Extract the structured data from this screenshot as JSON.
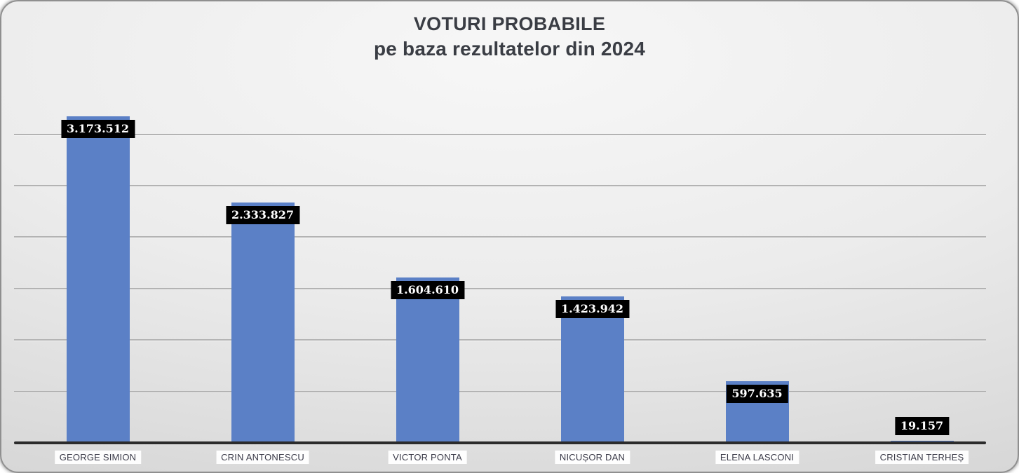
{
  "chart": {
    "title": "VOTURI PROBABILE",
    "subtitle": "pe baza rezultatelor din 2024"
  },
  "chart_data": {
    "type": "bar",
    "title": "VOTURI PROBABILE",
    "subtitle": "pe baza rezultatelor din 2024",
    "categories": [
      "GEORGE SIMION",
      "CRIN ANTONESCU",
      "VICTOR PONTA",
      "NICUȘOR DAN",
      "ELENA LASCONI",
      "CRISTIAN TERHEȘ"
    ],
    "values": [
      3173512,
      2333827,
      1604610,
      1423942,
      597635,
      19157
    ],
    "value_labels": [
      "3.173.512",
      "2.333.827",
      "1.604.610",
      "1.423.942",
      "597.635",
      "19.157"
    ],
    "xlabel": "",
    "ylabel": "",
    "ylim": [
      0,
      3000000
    ],
    "gridline_step": 500000,
    "grid": true,
    "legend": false,
    "bar_color": "#5b80c6",
    "value_label_bg": "#000000",
    "value_label_text": "#ffffff",
    "axis_color": "#2b2b2b",
    "background": "gradient-light-gray"
  }
}
